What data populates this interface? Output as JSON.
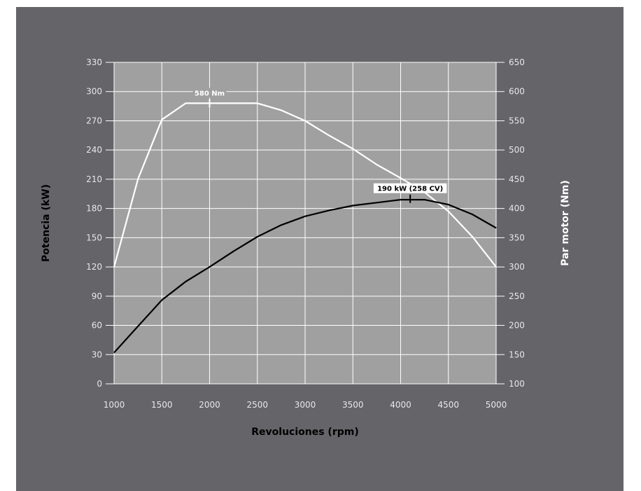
{
  "chart_data": {
    "type": "line",
    "xlabel": "Revoluciones (rpm)",
    "ylabel_left": "Potencia (kW)",
    "ylabel_right": "Par motor (Nm)",
    "xlim": [
      1000,
      5000
    ],
    "xticks": [
      1000,
      1500,
      2000,
      2500,
      3000,
      3500,
      4000,
      4500,
      5000
    ],
    "ylim_left": [
      0,
      330
    ],
    "yticks_left": [
      0,
      30,
      60,
      90,
      120,
      150,
      180,
      210,
      240,
      270,
      300,
      330
    ],
    "ylim_right": [
      100,
      650
    ],
    "yticks_right": [
      100,
      150,
      200,
      250,
      300,
      350,
      400,
      450,
      500,
      550,
      600,
      650
    ],
    "grid": true,
    "colors": {
      "background": "#646469",
      "plot_area": "#a0a0a0",
      "grid": "#ffffff",
      "torque_line": "#ffffff",
      "power_line": "#000000"
    },
    "series": [
      {
        "axis": "right",
        "color": "#ffffff",
        "x": [
          1000,
          1250,
          1500,
          1750,
          2000,
          2250,
          2500,
          2750,
          3000,
          3250,
          3500,
          3750,
          4000,
          4250,
          4500,
          4750,
          5000
        ],
        "values": [
          300,
          450,
          552,
          580,
          580,
          580,
          580,
          568,
          550,
          525,
          502,
          475,
          452,
          428,
          395,
          352,
          300
        ]
      },
      {
        "axis": "left",
        "color": "#000000",
        "x": [
          1000,
          1250,
          1500,
          1750,
          2000,
          2250,
          2500,
          2750,
          3000,
          3250,
          3500,
          3750,
          4000,
          4250,
          4500,
          4750,
          5000
        ],
        "values": [
          32,
          59,
          86,
          105,
          120,
          136,
          151,
          163,
          172,
          178,
          183,
          186,
          189,
          189,
          184,
          174,
          160
        ]
      }
    ],
    "annotations": [
      {
        "text": "580 Nm",
        "x": 2000,
        "y": 580,
        "axis": "right",
        "color": "#ffffff"
      },
      {
        "text": "190 kW (258 CV)",
        "x": 4100,
        "y": 190,
        "axis": "left",
        "color": "#000000"
      }
    ]
  }
}
